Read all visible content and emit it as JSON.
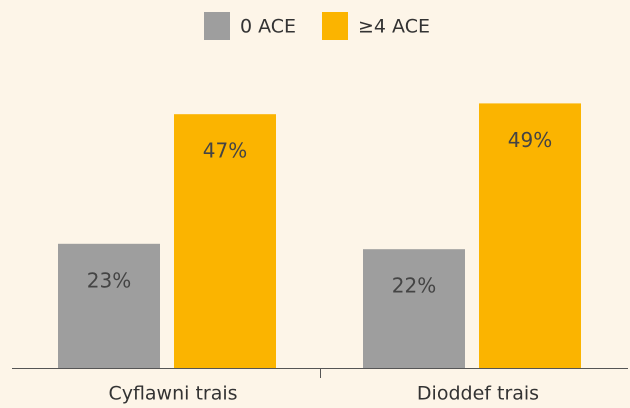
{
  "chart_data": {
    "type": "bar",
    "categories": [
      "Cyflawni trais",
      "Dioddef trais"
    ],
    "series": [
      {
        "name": "0 ACE",
        "color": "#9e9e9e",
        "values": [
          23,
          22
        ],
        "value_labels": [
          "23%",
          "22%"
        ]
      },
      {
        "name": "≥4 ACE",
        "color": "#fbb400",
        "values": [
          47,
          49
        ],
        "value_labels": [
          "47%",
          "49%"
        ]
      }
    ],
    "legend": "top"
  }
}
